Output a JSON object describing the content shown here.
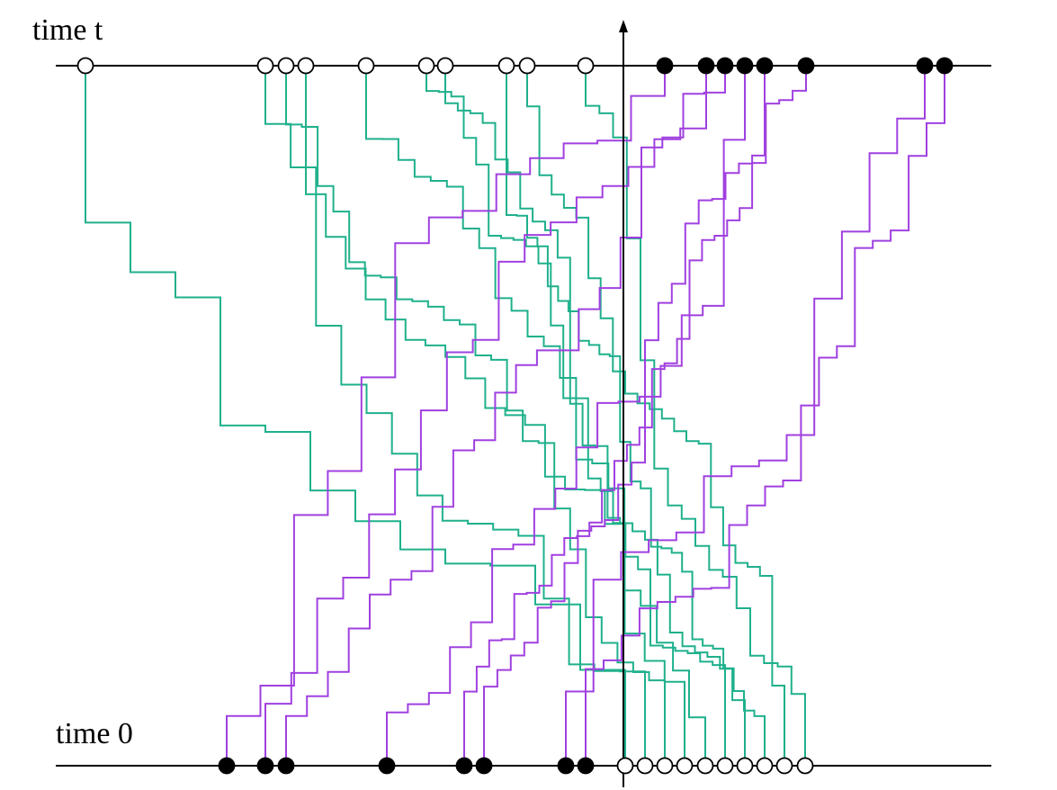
{
  "labels": {
    "top": "time t",
    "bottom": "time 0"
  }
}
